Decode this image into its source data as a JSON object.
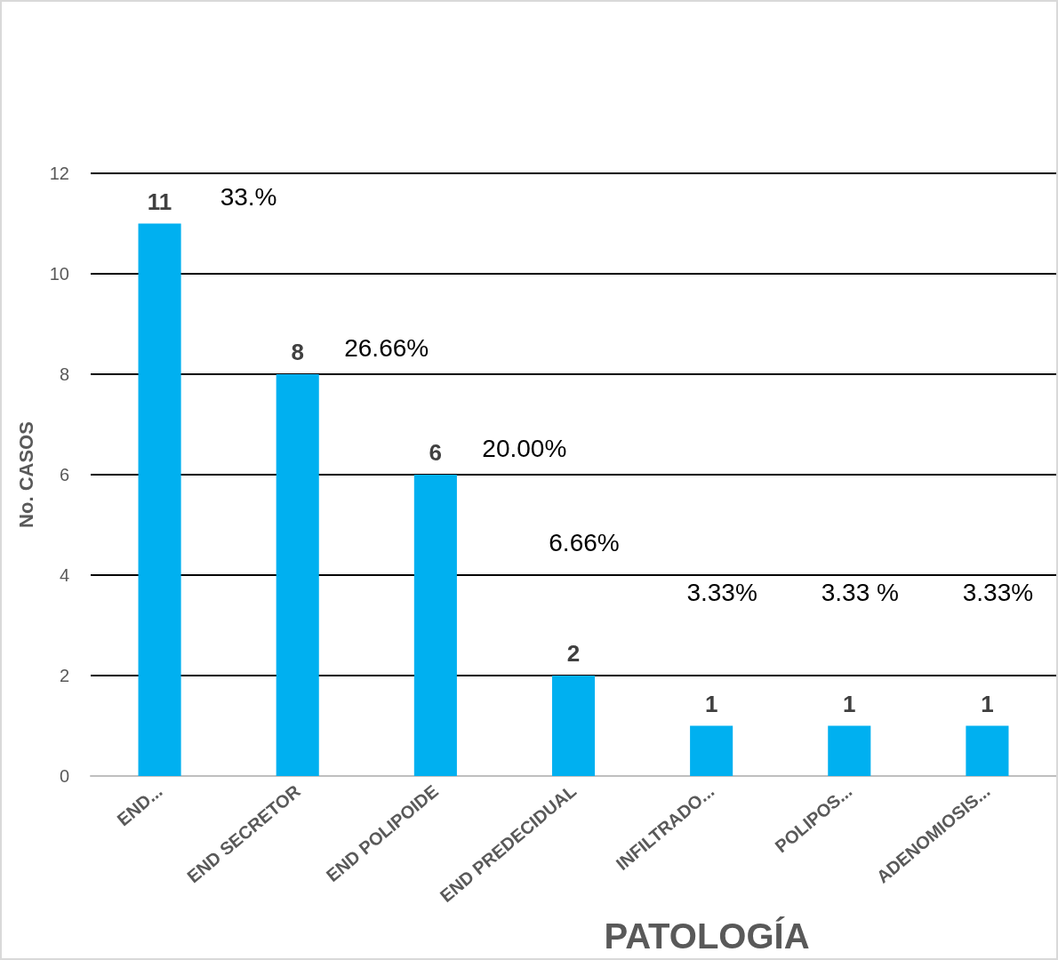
{
  "chart_data": {
    "type": "bar",
    "categories": [
      "END...",
      "END SECRETOR",
      "END POLIPOIDE",
      "END PREDECIDUAL",
      "INFILTRADO...",
      "POLIPOS...",
      "ADENOMIOSIS..."
    ],
    "values": [
      11,
      8,
      6,
      2,
      1,
      1,
      1
    ],
    "color": "#00b0f0",
    "ylim": [
      0,
      12
    ],
    "yticks": [
      0,
      2,
      4,
      6,
      8,
      10,
      12
    ],
    "grid": "y",
    "data_labels": true,
    "xlabel": "PATOLOGÍA",
    "ylabel": "No. CASOS",
    "annotations": [
      "33.%",
      "26.66%",
      "20.00%",
      "6.66%",
      "3.33%",
      "3.33 %",
      "3.33%"
    ]
  }
}
